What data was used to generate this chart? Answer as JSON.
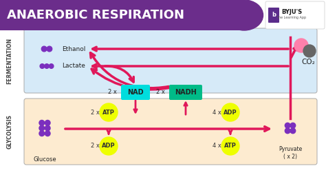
{
  "title": "ANAEROBIC RESPIRATION",
  "title_bg": "#6B2D8B",
  "title_color": "#FFFFFF",
  "fermentation_bg": "#D6EAF8",
  "glycolysis_bg": "#FDEBD0",
  "fermentation_label": "FERMENTATION",
  "glycolysis_label": "GLYCOLYSIS",
  "ethanol_label": "Ethanol",
  "lactate_label": "Lactate",
  "glucose_label": "Glucose",
  "pyruvate_label": "Pyruvate\n( x 2)",
  "co2_label": "CO₂",
  "nad_label": "NAD",
  "nadh_label": "NADH",
  "nad_bg": "#00DDDD",
  "nadh_bg": "#00BB88",
  "atp_bg": "#EEFF00",
  "adp_bg": "#EEFF00",
  "arrow_color": "#E0185A",
  "molecule_color": "#7B2FBE",
  "co2_color1": "#FF80AB",
  "co2_color2": "#666666"
}
